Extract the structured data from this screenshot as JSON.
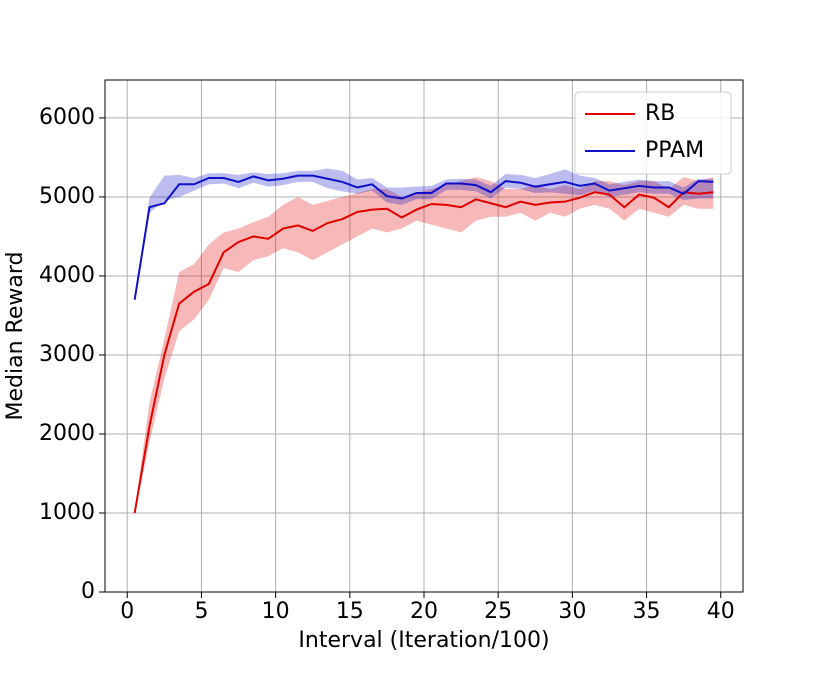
{
  "chart_data": {
    "type": "line",
    "xlabel": "Interval (Iteration/100)",
    "ylabel": "Median Reward",
    "x": [
      0.5,
      1.5,
      2.5,
      3.5,
      4.5,
      5.5,
      6.5,
      7.5,
      8.5,
      9.5,
      10.5,
      11.5,
      12.5,
      13.5,
      14.5,
      15.5,
      16.5,
      17.5,
      18.5,
      19.5,
      20.5,
      21.5,
      22.5,
      23.5,
      24.5,
      25.5,
      26.5,
      27.5,
      28.5,
      29.5,
      30.5,
      31.5,
      32.5,
      33.5,
      34.5,
      35.5,
      36.5,
      37.5,
      38.5,
      39.5
    ],
    "series": [
      {
        "name": "RB",
        "color": "#e00000",
        "values": [
          1000,
          2100,
          3000,
          3650,
          3800,
          3900,
          4300,
          4430,
          4500,
          4470,
          4600,
          4640,
          4570,
          4670,
          4720,
          4810,
          4840,
          4850,
          4740,
          4840,
          4910,
          4900,
          4870,
          4970,
          4920,
          4870,
          4940,
          4900,
          4930,
          4940,
          4990,
          5060,
          5030,
          4870,
          5030,
          4990,
          4870,
          5060,
          5040,
          5060
        ],
        "lower": [
          980,
          1900,
          2700,
          3300,
          3450,
          3700,
          4100,
          4050,
          4200,
          4250,
          4350,
          4300,
          4200,
          4300,
          4400,
          4500,
          4600,
          4550,
          4600,
          4700,
          4650,
          4600,
          4550,
          4700,
          4750,
          4750,
          4800,
          4700,
          4800,
          4750,
          4850,
          4900,
          4850,
          4700,
          4850,
          4800,
          4750,
          4900,
          4850,
          4850
        ],
        "upper": [
          1020,
          2400,
          3200,
          4050,
          4150,
          4400,
          4550,
          4600,
          4680,
          4750,
          4900,
          5000,
          4900,
          4950,
          5000,
          5050,
          5100,
          5100,
          5000,
          5050,
          5100,
          5150,
          5200,
          5250,
          5200,
          5100,
          5100,
          5150,
          5100,
          5150,
          5100,
          5200,
          5200,
          5150,
          5200,
          5200,
          5100,
          5250,
          5200,
          5250
        ]
      },
      {
        "name": "PPAM",
        "color": "#1010c8",
        "values": [
          3700,
          4870,
          4920,
          5160,
          5160,
          5240,
          5240,
          5190,
          5260,
          5210,
          5230,
          5270,
          5270,
          5230,
          5190,
          5120,
          5160,
          5010,
          4980,
          5050,
          5050,
          5170,
          5170,
          5150,
          5060,
          5200,
          5180,
          5130,
          5160,
          5190,
          5140,
          5170,
          5080,
          5110,
          5140,
          5120,
          5120,
          5040,
          5200,
          5190
        ],
        "lower": [
          3690,
          4800,
          4950,
          5000,
          5080,
          5160,
          5170,
          5110,
          5180,
          5130,
          5150,
          5190,
          5190,
          5110,
          5070,
          5040,
          5080,
          4930,
          4900,
          4970,
          4970,
          5090,
          5090,
          5070,
          4980,
          5120,
          5100,
          5050,
          5060,
          5040,
          5020,
          5080,
          5000,
          5030,
          5060,
          5040,
          5040,
          4960,
          4980,
          4980
        ],
        "upper": [
          3710,
          4990,
          5270,
          5280,
          5240,
          5300,
          5300,
          5280,
          5310,
          5290,
          5300,
          5330,
          5330,
          5360,
          5330,
          5220,
          5240,
          5120,
          5120,
          5130,
          5140,
          5220,
          5230,
          5220,
          5140,
          5290,
          5280,
          5240,
          5290,
          5350,
          5270,
          5240,
          5160,
          5190,
          5220,
          5200,
          5200,
          5120,
          5230,
          5230
        ]
      }
    ],
    "xlim": [
      -1.5,
      41.5
    ],
    "xticks": [
      0,
      5,
      10,
      15,
      20,
      25,
      30,
      35,
      40
    ],
    "ylim": [
      0,
      6480
    ],
    "yticks": [
      0,
      1000,
      2000,
      3000,
      4000,
      5000,
      6000
    ],
    "grid": true,
    "legend": "upper right"
  }
}
